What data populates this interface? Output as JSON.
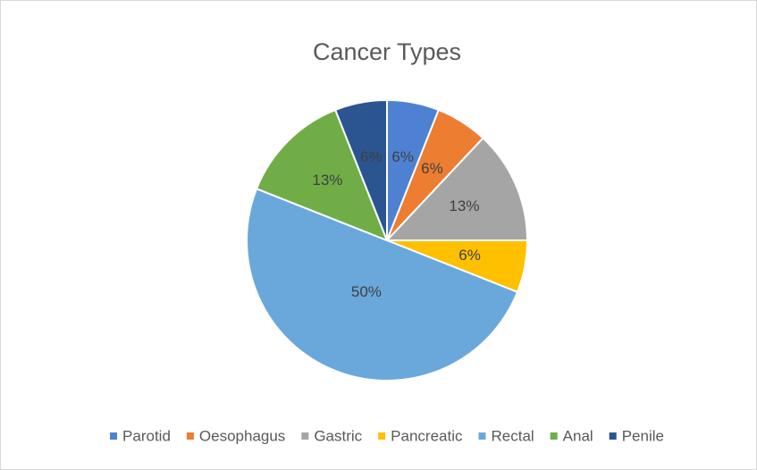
{
  "chart_data": {
    "type": "pie",
    "title": "Cancer Types",
    "categories": [
      "Parotid",
      "Oesophagus",
      "Gastric",
      "Pancreatic",
      "Rectal",
      "Anal",
      "Penile"
    ],
    "values": [
      6,
      6,
      13,
      6,
      50,
      13,
      6
    ],
    "value_labels": [
      "6%",
      "6%",
      "13%",
      "6%",
      "50%",
      "13%",
      "6%"
    ],
    "colors": [
      "#4f81d2",
      "#ed7d31",
      "#a5a5a5",
      "#ffc000",
      "#6aa8dc",
      "#70ad47",
      "#2a5590"
    ],
    "legend": "bottom"
  }
}
